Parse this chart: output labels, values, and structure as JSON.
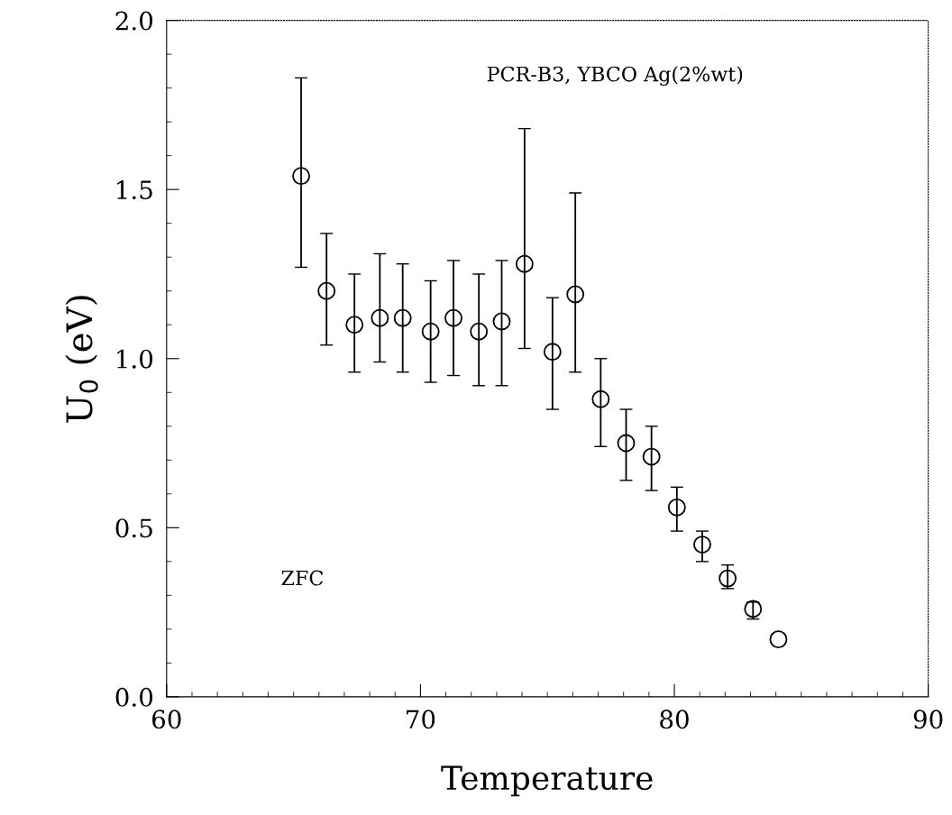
{
  "chart_data": {
    "type": "scatter",
    "xlabel": "Temperature",
    "ylabel": "U$_{0}$ (eV)",
    "annotations": [
      "PCR-B3, YBCO Ag(2%wt)",
      "ZFC"
    ],
    "x": [
      65.3,
      66.3,
      67.4,
      68.4,
      69.3,
      70.4,
      71.3,
      72.3,
      73.2,
      74.1,
      75.2,
      76.1,
      77.1,
      78.1,
      79.1,
      80.1,
      81.1,
      82.1,
      83.1,
      84.1
    ],
    "series": [
      {
        "color": "#000000",
        "values": [
          1.54,
          1.2,
          1.1,
          1.12,
          1.12,
          1.08,
          1.12,
          1.08,
          1.11,
          1.28,
          1.02,
          1.19,
          0.88,
          0.75,
          0.71,
          0.56,
          0.45,
          0.35,
          0.26,
          0.17
        ],
        "errors": [
          [
            1.27,
            1.83
          ],
          [
            1.04,
            1.37
          ],
          [
            0.96,
            1.25
          ],
          [
            0.99,
            1.31
          ],
          [
            0.96,
            1.28
          ],
          [
            0.93,
            1.23
          ],
          [
            0.95,
            1.29
          ],
          [
            0.92,
            1.25
          ],
          [
            0.92,
            1.29
          ],
          [
            1.03,
            1.68
          ],
          [
            0.85,
            1.18
          ],
          [
            0.96,
            1.49
          ],
          [
            0.74,
            1.0
          ],
          [
            0.64,
            0.85
          ],
          [
            0.61,
            0.8
          ],
          [
            0.49,
            0.62
          ],
          [
            0.4,
            0.49
          ],
          [
            0.32,
            0.39
          ],
          [
            0.23,
            0.28
          ],
          null
        ]
      }
    ],
    "marker": "circle",
    "xlim": [
      60,
      90
    ],
    "ylim": [
      0,
      2
    ],
    "xticks": [
      60,
      70,
      80,
      90
    ],
    "yticks": [
      {
        "value": 0,
        "label": "0.0"
      },
      {
        "value": 0.5,
        "label": "0.5"
      },
      {
        "value": 1,
        "label": "1.0"
      },
      {
        "value": 1.5,
        "label": "1.5"
      },
      {
        "value": 2,
        "label": "2.0"
      }
    ],
    "grid": false,
    "legend": false
  }
}
